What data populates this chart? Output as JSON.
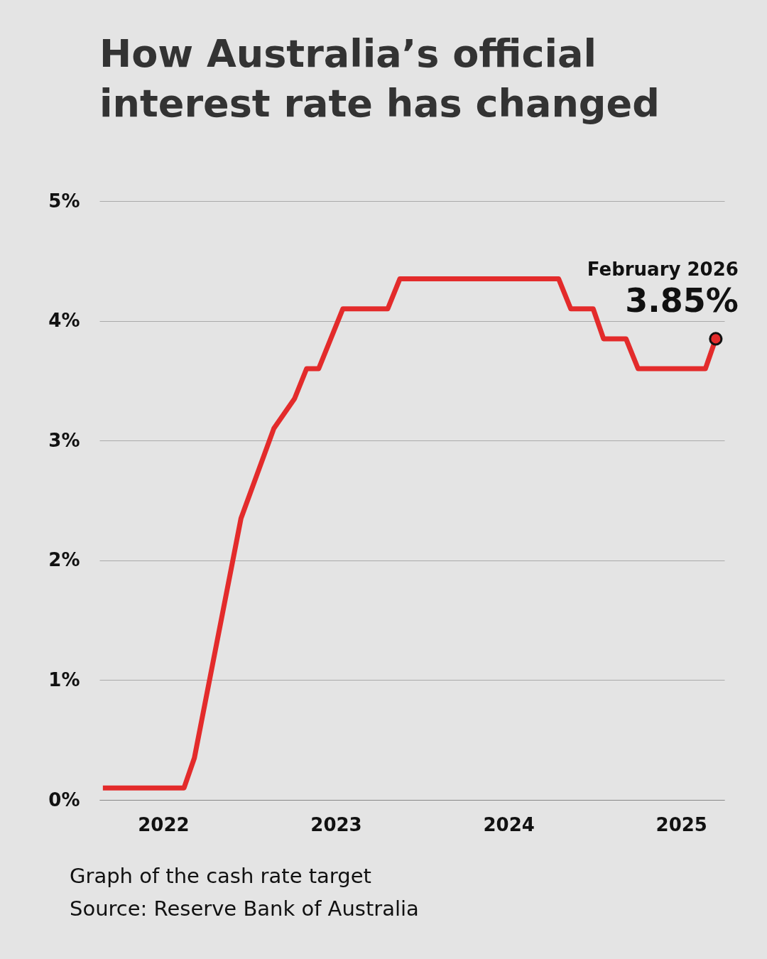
{
  "chart_data": {
    "type": "line",
    "title": [
      "How Australia’s official",
      "interest rate has changed"
    ],
    "xlim": [
      2021.63,
      2025.25
    ],
    "xticks": [
      2022,
      2023,
      2024,
      2025
    ],
    "ylim": [
      0,
      5
    ],
    "yticks": [
      {
        "value": 0,
        "label": "0%"
      },
      {
        "value": 1,
        "label": "1%"
      },
      {
        "value": 2,
        "label": "2%"
      },
      {
        "value": 3,
        "label": "3%"
      },
      {
        "value": 4,
        "label": "4%"
      },
      {
        "value": 5,
        "label": "5%"
      }
    ],
    "grid": "y",
    "line_style": "solid",
    "series": [
      {
        "color": "#e32b2b",
        "x": [
          2021.65,
          2022.12,
          2022.18,
          2022.45,
          2022.64,
          2022.76,
          2022.83,
          2022.9,
          2023.04,
          2023.3,
          2023.37,
          2024.29,
          2024.36,
          2024.49,
          2024.55,
          2024.68,
          2024.75,
          2025.14,
          2025.2
        ],
        "values": [
          0.1,
          0.1,
          0.35,
          2.35,
          3.1,
          3.35,
          3.6,
          3.6,
          4.1,
          4.1,
          4.35,
          4.35,
          4.1,
          4.1,
          3.85,
          3.85,
          3.6,
          3.6,
          3.85
        ]
      },
      {
        "type": "scatter",
        "color": "#e32b2b",
        "x": [
          2025.2
        ],
        "values": [
          3.85
        ],
        "value_labels": [
          "3.85%"
        ],
        "marker": "circle"
      }
    ],
    "annotations": [
      "February 2026",
      "Graph of the cash rate target",
      "Source: Reserve Bank of Australia"
    ]
  }
}
